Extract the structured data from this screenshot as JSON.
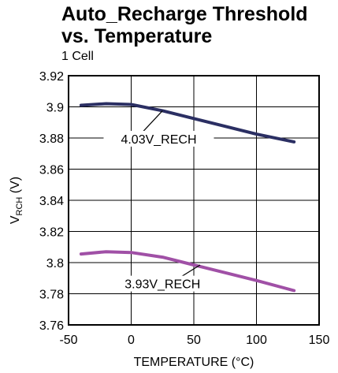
{
  "chart_data": {
    "type": "line",
    "title": [
      "Auto_Recharge Threshold",
      "vs. Temperature"
    ],
    "subtitle": "1 Cell",
    "xlabel": "TEMPERATURE (°C)",
    "ylabel": {
      "main": "V",
      "sub": "RCH",
      "unit": " (V)"
    },
    "xlim": [
      -50,
      150
    ],
    "ylim": [
      3.76,
      3.92
    ],
    "xticks": [
      -50,
      0,
      50,
      100,
      150
    ],
    "xtick_labels": [
      "-50",
      "0",
      "50",
      "100",
      "150"
    ],
    "yticks": [
      3.76,
      3.78,
      3.8,
      3.82,
      3.84,
      3.86,
      3.88,
      3.9,
      3.92
    ],
    "ytick_labels": [
      "3.76",
      "3.78",
      "3.8",
      "3.82",
      "3.84",
      "3.86",
      "3.88",
      "3.9",
      "3.92"
    ],
    "grid": true,
    "series": [
      {
        "name": "4.03V_RECH",
        "color": "#2b2f63",
        "x": [
          -40,
          -20,
          0,
          25,
          50,
          75,
          100,
          130
        ],
        "y": [
          3.901,
          3.902,
          3.9015,
          3.8975,
          3.8925,
          3.8875,
          3.8825,
          3.8775
        ]
      },
      {
        "name": "3.93V_RECH",
        "color": "#a050a6",
        "x": [
          -40,
          -20,
          0,
          25,
          50,
          75,
          100,
          130
        ],
        "y": [
          3.8055,
          3.807,
          3.8065,
          3.8035,
          3.7985,
          3.7935,
          3.7885,
          3.782
        ]
      }
    ]
  }
}
